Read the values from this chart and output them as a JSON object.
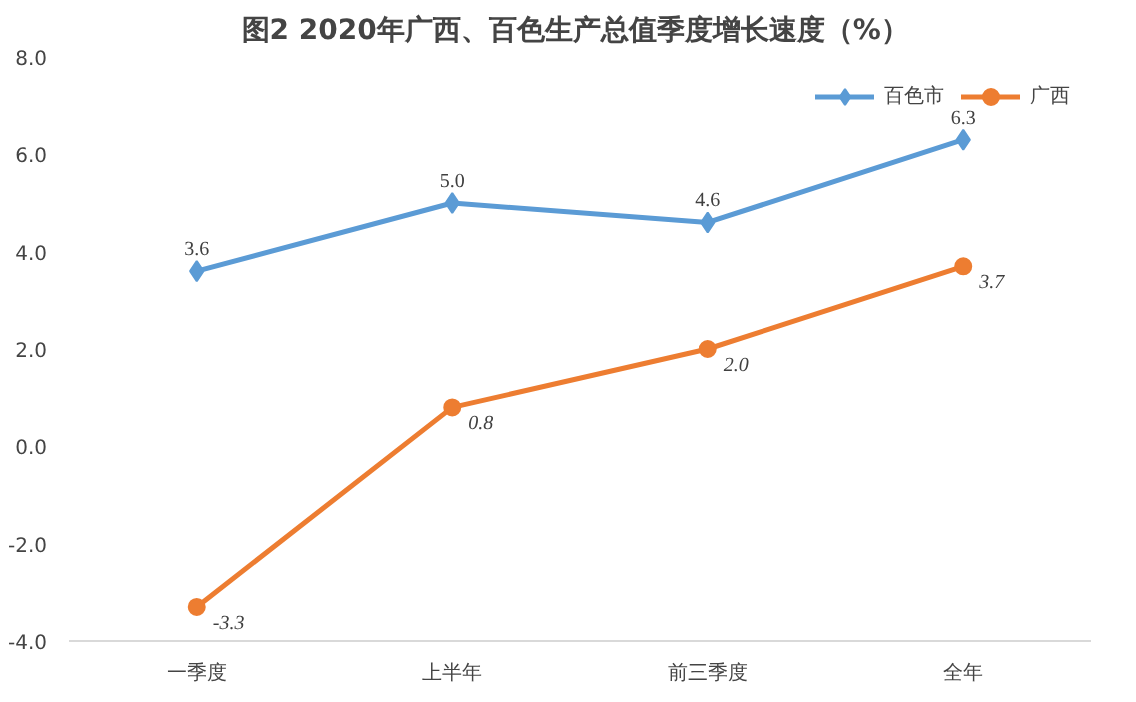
{
  "chart_data": {
    "type": "line",
    "title": "图2  2020年广西、百色生产总值季度增长速度（%）",
    "categories": [
      "一季度",
      "上半年",
      "前三季度",
      "全年"
    ],
    "series": [
      {
        "name": "百色市",
        "color": "#5b9bd5",
        "marker": "diamond",
        "values": [
          3.6,
          5.0,
          4.6,
          6.3
        ],
        "value_labels": [
          "3.6",
          "5.0",
          "4.6",
          "6.3"
        ]
      },
      {
        "name": "广西",
        "color": "#ed7d31",
        "marker": "circle",
        "values": [
          -3.3,
          0.8,
          2.0,
          3.7
        ],
        "value_labels": [
          "-3.3",
          "0.8",
          "2.0",
          "3.7"
        ]
      }
    ],
    "ylim": [
      -4,
      8
    ],
    "yticks": [
      {
        "value": -4,
        "label": "-4.0"
      },
      {
        "value": -2,
        "label": "-2.0"
      },
      {
        "value": 0,
        "label": "0.0"
      },
      {
        "value": 2,
        "label": "2.0"
      },
      {
        "value": 4,
        "label": "4.0"
      },
      {
        "value": 6,
        "label": "6.0"
      },
      {
        "value": 8,
        "label": "8.0"
      }
    ],
    "grid": false,
    "legend": "top right",
    "line_style": "solid"
  }
}
